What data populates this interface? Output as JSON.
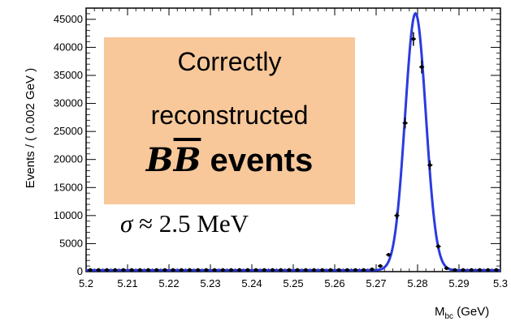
{
  "chart_data": {
    "type": "line",
    "ylabel": "Events / ( 0.002 GeV )",
    "xlabel_main": "M",
    "xlabel_sub": "bc",
    "xlabel_unit": " (GeV)",
    "xlim": [
      5.2,
      5.3
    ],
    "ylim": [
      0,
      47000
    ],
    "x_ticks": [
      "5.2",
      "5.21",
      "5.22",
      "5.23",
      "5.24",
      "5.25",
      "5.26",
      "5.27",
      "5.28",
      "5.29",
      "5.3"
    ],
    "y_ticks": [
      "0",
      "5000",
      "10000",
      "15000",
      "20000",
      "25000",
      "30000",
      "35000",
      "40000",
      "45000"
    ],
    "series": [
      {
        "kind": "data-points",
        "color": "#000000",
        "x": [
          5.201,
          5.203,
          5.205,
          5.207,
          5.209,
          5.211,
          5.213,
          5.215,
          5.217,
          5.219,
          5.221,
          5.223,
          5.225,
          5.227,
          5.229,
          5.231,
          5.233,
          5.235,
          5.237,
          5.239,
          5.241,
          5.243,
          5.245,
          5.247,
          5.249,
          5.251,
          5.253,
          5.255,
          5.257,
          5.259,
          5.261,
          5.263,
          5.265,
          5.267,
          5.269,
          5.271,
          5.273,
          5.275,
          5.277,
          5.279,
          5.281,
          5.283,
          5.285,
          5.287,
          5.289,
          5.291,
          5.293,
          5.295,
          5.297,
          5.299
        ],
        "y": [
          300,
          300,
          300,
          300,
          300,
          300,
          300,
          300,
          300,
          300,
          300,
          300,
          300,
          300,
          300,
          300,
          300,
          300,
          300,
          300,
          300,
          300,
          300,
          300,
          300,
          300,
          300,
          300,
          300,
          300,
          300,
          300,
          300,
          300,
          400,
          1000,
          3000,
          10000,
          26500,
          41500,
          36500,
          19000,
          4500,
          600,
          300,
          300,
          300,
          300,
          300,
          300
        ]
      },
      {
        "kind": "fit-curve",
        "color": "#2a3be0",
        "mean": 5.2795,
        "sigma": 0.0025,
        "peak": 45800,
        "baseline": 250
      }
    ],
    "annotations": {
      "box_line1": "Correctly",
      "box_line2": "reconstructed",
      "box_symbol": "B",
      "box_symbol_bar": "B",
      "box_line3_rest": " events",
      "box_color": "#f8c89a",
      "resolution_symbol": "σ",
      "resolution_text": " ≈ 2.5 MeV"
    }
  }
}
